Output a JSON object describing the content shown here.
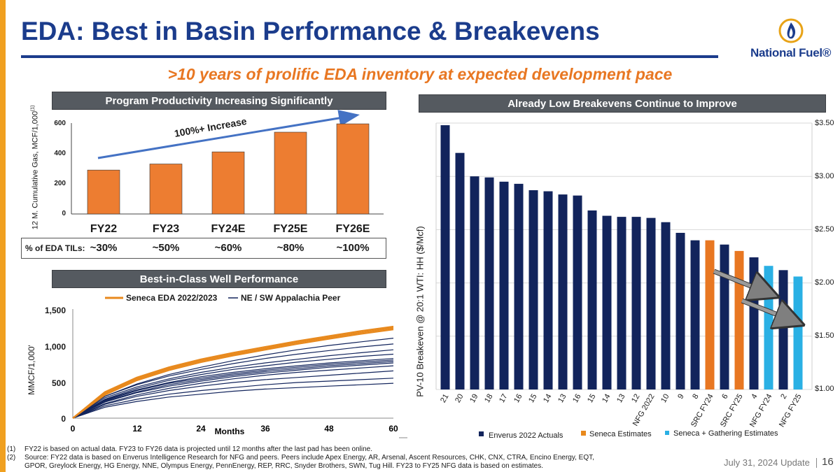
{
  "header": {
    "title": "EDA: Best in Basin Performance & Breakevens",
    "subtitle": ">10 years of prolific EDA inventory at expected development pace",
    "logo_text": "National Fuel®"
  },
  "colors": {
    "navy": "#12245c",
    "orange": "#e87722",
    "sky": "#2ab0e4",
    "brand_blue": "#1b3c8c",
    "bar_orange": "#ed7d31",
    "panel_gray": "#555a60"
  },
  "chart_data": [
    {
      "type": "bar",
      "title": "Program Productivity Increasing Significantly",
      "ylabel": "12 M. Cumulative Gas, MCF/1,000",
      "ylabel_sup": "(1)",
      "categories": [
        "FY22",
        "FY23",
        "FY24E",
        "FY25E",
        "FY26E"
      ],
      "values": [
        290,
        330,
        410,
        540,
        595
      ],
      "ylim": [
        0,
        600
      ],
      "yticks": [
        "0",
        "200",
        "400",
        "600"
      ],
      "annotation": "100%+ Increase",
      "til_label": "% of EDA TILs:",
      "til_values": [
        "~30%",
        "~50%",
        "~60%",
        "~80%",
        "~100%"
      ]
    },
    {
      "type": "line",
      "title": "Best-in-Class Well Performance",
      "ylabel": "MMCF/1,000'",
      "xlabel": "Months",
      "xlim": [
        0,
        60
      ],
      "ylim": [
        0,
        1500
      ],
      "xticks": [
        "0",
        "12",
        "24",
        "36",
        "48",
        "60"
      ],
      "yticks": [
        "0",
        "500",
        "1,000",
        "1,500"
      ],
      "legend": [
        "Seneca EDA 2022/2023",
        "NE / SW Appalachia Peer"
      ],
      "series": [
        {
          "group": "seneca",
          "x": [
            0,
            6,
            12,
            18,
            24,
            30,
            36,
            42,
            48,
            54,
            60
          ],
          "y": [
            0,
            340,
            540,
            680,
            790,
            880,
            960,
            1040,
            1110,
            1180,
            1240
          ]
        },
        {
          "group": "seneca",
          "x": [
            0,
            6,
            12,
            18,
            24,
            30,
            36,
            42,
            48,
            54,
            60
          ],
          "y": [
            0,
            360,
            560,
            700,
            810,
            900,
            980,
            1060,
            1130,
            1200,
            1260
          ]
        },
        {
          "group": "seneca",
          "x": [
            0,
            6,
            12,
            18,
            24,
            30,
            36,
            42,
            48,
            54,
            60
          ],
          "y": [
            0,
            320,
            520,
            660,
            770,
            860,
            940,
            1020,
            1090,
            1160,
            1220
          ]
        },
        {
          "group": "peer",
          "x": [
            0,
            6,
            12,
            18,
            24,
            30,
            36,
            42,
            48,
            54,
            60
          ],
          "y": [
            0,
            300,
            470,
            600,
            700,
            790,
            870,
            940,
            1000,
            1050,
            1100
          ]
        },
        {
          "group": "peer",
          "x": [
            0,
            6,
            12,
            18,
            24,
            30,
            36,
            42,
            48,
            54,
            60
          ],
          "y": [
            0,
            300,
            460,
            580,
            670,
            750,
            820,
            880,
            930,
            980,
            1020
          ]
        },
        {
          "group": "peer",
          "x": [
            0,
            6,
            12,
            18,
            24,
            30,
            36,
            42,
            48,
            54,
            60
          ],
          "y": [
            0,
            280,
            430,
            540,
            630,
            700,
            760,
            810,
            860,
            900,
            940
          ]
        },
        {
          "group": "peer",
          "x": [
            0,
            6,
            12,
            18,
            24,
            30,
            36,
            42,
            48,
            54,
            60
          ],
          "y": [
            0,
            260,
            410,
            520,
            600,
            670,
            720,
            770,
            810,
            850,
            880
          ]
        },
        {
          "group": "peer",
          "x": [
            0,
            6,
            12,
            18,
            24,
            30,
            36,
            42,
            48,
            54,
            60
          ],
          "y": [
            0,
            250,
            390,
            490,
            570,
            630,
            680,
            720,
            760,
            790,
            820
          ]
        },
        {
          "group": "peer",
          "x": [
            0,
            6,
            12,
            18,
            24,
            30,
            36,
            42,
            48,
            54,
            60
          ],
          "y": [
            0,
            240,
            380,
            480,
            550,
            610,
            660,
            700,
            740,
            770,
            800
          ]
        },
        {
          "group": "peer",
          "x": [
            0,
            6,
            12,
            18,
            24,
            30,
            36,
            42,
            48,
            54,
            60
          ],
          "y": [
            0,
            230,
            360,
            460,
            530,
            590,
            640,
            680,
            720,
            750,
            780
          ]
        },
        {
          "group": "peer",
          "x": [
            0,
            6,
            12,
            18,
            24,
            30,
            36,
            42,
            48,
            54,
            60
          ],
          "y": [
            0,
            220,
            350,
            440,
            510,
            570,
            620,
            660,
            700,
            730,
            760
          ]
        },
        {
          "group": "peer",
          "x": [
            0,
            6,
            12,
            18,
            24,
            30,
            36,
            42,
            48,
            54,
            60
          ],
          "y": [
            0,
            200,
            320,
            410,
            480,
            540,
            590,
            630,
            660,
            690,
            720
          ]
        },
        {
          "group": "peer",
          "x": [
            0,
            6,
            12,
            18,
            24,
            30,
            36,
            42,
            48,
            54,
            60
          ],
          "y": [
            0,
            190,
            300,
            380,
            440,
            490,
            530,
            560,
            590,
            620,
            650
          ]
        },
        {
          "group": "peer",
          "x": [
            0,
            6,
            12,
            18,
            24,
            30,
            36,
            42,
            48,
            54,
            60
          ],
          "y": [
            0,
            170,
            260,
            330,
            380,
            420,
            460,
            490,
            510,
            530,
            550
          ]
        },
        {
          "group": "peer",
          "x": [
            0,
            6,
            12,
            18,
            24,
            30,
            36,
            42,
            48,
            54,
            60
          ],
          "y": [
            0,
            150,
            230,
            290,
            330,
            370,
            400,
            420,
            440,
            460,
            480
          ]
        }
      ]
    },
    {
      "type": "bar",
      "title": "Already Low Breakevens Continue to Improve",
      "ylabel": "PV-10 Breakeven @ 20:1 WTI: HH ($/Mcf)",
      "ylim": [
        1.0,
        3.5
      ],
      "yticks": [
        "$1.00",
        "$1.50",
        "$2.00",
        "$2.50",
        "$3.00",
        "$3.50"
      ],
      "categories": [
        "21",
        "20",
        "19",
        "18",
        "17",
        "16",
        "15",
        "14",
        "13",
        "16",
        "15",
        "14",
        "13",
        "12",
        "NFG 2022",
        "10",
        "9",
        "8",
        "SRC FY24",
        "6",
        "SRC FY25",
        "4",
        "NFG FY24",
        "2",
        "NFG FY25"
      ],
      "values": [
        3.48,
        3.22,
        3.0,
        2.99,
        2.95,
        2.93,
        2.87,
        2.86,
        2.83,
        2.82,
        2.68,
        2.63,
        2.62,
        2.62,
        2.61,
        2.57,
        2.47,
        2.4,
        2.4,
        2.36,
        2.3,
        2.24,
        2.16,
        2.12,
        2.06
      ],
      "groups": [
        "actual",
        "actual",
        "actual",
        "actual",
        "actual",
        "actual",
        "actual",
        "actual",
        "actual",
        "actual",
        "actual",
        "actual",
        "actual",
        "actual",
        "actual",
        "actual",
        "actual",
        "actual",
        "seneca",
        "actual",
        "seneca",
        "actual",
        "gathering",
        "actual",
        "gathering"
      ],
      "legend": [
        "Enverus 2022 Actuals",
        "Seneca Estimates",
        "Seneca + Gathering Estimates"
      ]
    }
  ],
  "footnotes": [
    {
      "num": "(1)",
      "text": "FY22 is based on actual data. FY23 to FY26 data is projected until 12 months after the last pad has been online."
    },
    {
      "num": "(2)",
      "text": "Source: FY22 data is based on Enverus Intelligence Research for NFG and peers. Peers include Apex Energy, AR, Arsenal, Ascent Resources, CHK, CNX, CTRA, Encino Energy, EQT,"
    },
    {
      "num": "",
      "text": "GPOR, Greylock Energy, HG Energy, NNE, Olympus Energy, PennEnergy, REP, RRC, Snyder Brothers, SWN, Tug Hill. FY23 to FY25 NFG data is based on estimates."
    }
  ],
  "footer": {
    "date": "July 31, 2024 Update",
    "page": "16"
  }
}
